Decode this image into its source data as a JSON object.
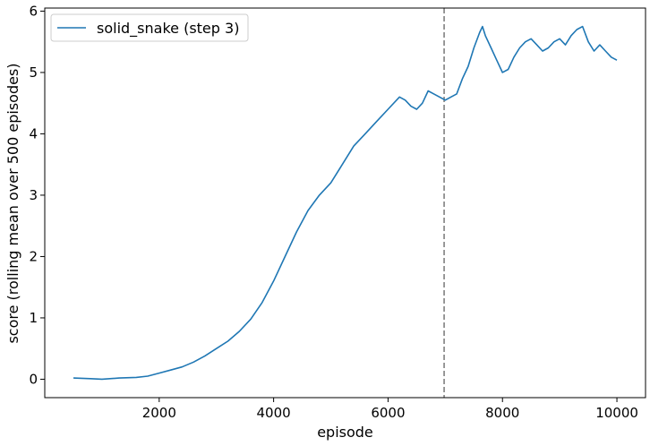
{
  "chart_data": {
    "type": "line",
    "title": "",
    "xlabel": "episode",
    "ylabel": "score (rolling mean over 500 episodes)",
    "xlim": [
      0,
      10500
    ],
    "ylim": [
      -0.3,
      6.05
    ],
    "grid": false,
    "legend_position": "upper-left",
    "x_ticks": [
      2000,
      4000,
      6000,
      8000,
      10000
    ],
    "x_tick_labels": [
      "2000",
      "4000",
      "6000",
      "8000",
      "10000"
    ],
    "y_ticks": [
      0,
      1,
      2,
      3,
      4,
      5,
      6
    ],
    "y_tick_labels": [
      "0",
      "1",
      "2",
      "3",
      "4",
      "5",
      "6"
    ],
    "vertical_line": {
      "x": 6980,
      "style": "dashed",
      "color": "#808080"
    },
    "series": [
      {
        "name": "solid_snake (step 3)",
        "color": "#1f77b4",
        "x": [
          500,
          800,
          1000,
          1300,
          1600,
          1800,
          2000,
          2200,
          2400,
          2600,
          2800,
          3000,
          3200,
          3400,
          3600,
          3800,
          4000,
          4200,
          4400,
          4600,
          4800,
          5000,
          5200,
          5400,
          5600,
          5800,
          6000,
          6200,
          6300,
          6400,
          6500,
          6600,
          6700,
          6800,
          6900,
          7000,
          7100,
          7200,
          7300,
          7400,
          7500,
          7600,
          7650,
          7700,
          7800,
          7900,
          8000,
          8100,
          8200,
          8300,
          8400,
          8500,
          8600,
          8700,
          8800,
          8900,
          9000,
          9100,
          9200,
          9300,
          9400,
          9500,
          9600,
          9700,
          9800,
          9900,
          10000
        ],
        "y": [
          0.02,
          0.01,
          0.0,
          0.02,
          0.03,
          0.05,
          0.1,
          0.15,
          0.2,
          0.28,
          0.38,
          0.5,
          0.62,
          0.78,
          0.98,
          1.25,
          1.6,
          2.0,
          2.4,
          2.75,
          3.0,
          3.2,
          3.5,
          3.8,
          4.0,
          4.2,
          4.4,
          4.6,
          4.55,
          4.45,
          4.4,
          4.5,
          4.7,
          4.65,
          4.6,
          4.55,
          4.6,
          4.65,
          4.9,
          5.1,
          5.4,
          5.65,
          5.75,
          5.6,
          5.4,
          5.2,
          5.0,
          5.05,
          5.25,
          5.4,
          5.5,
          5.55,
          5.45,
          5.35,
          5.4,
          5.5,
          5.55,
          5.45,
          5.6,
          5.7,
          5.75,
          5.5,
          5.35,
          5.45,
          5.35,
          5.25,
          5.2
        ]
      }
    ]
  }
}
